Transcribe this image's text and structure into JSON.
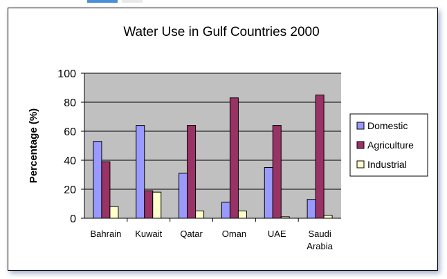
{
  "colors": {
    "plot_bg": "#c0c0c0",
    "domestic": "#9999ff",
    "agriculture": "#993366",
    "industrial": "#ffffcc",
    "gridline": "#000000"
  },
  "chart_data": {
    "type": "bar",
    "title": "Water Use in Gulf Countries 2000",
    "xlabel": "",
    "ylabel": "Percentage (%)",
    "ylim": [
      0,
      100
    ],
    "yticks": [
      0,
      20,
      40,
      60,
      80,
      100
    ],
    "grid": true,
    "legend_position": "right",
    "categories": [
      [
        "Bahrain"
      ],
      [
        "Kuwait"
      ],
      [
        "Qatar"
      ],
      [
        "Oman"
      ],
      [
        "UAE"
      ],
      [
        "Saudi",
        "Arabia"
      ]
    ],
    "series": [
      {
        "name": "Domestic",
        "color": "#9999ff",
        "values": [
          53,
          64,
          31,
          11,
          35,
          13
        ]
      },
      {
        "name": "Agriculture",
        "color": "#993366",
        "values": [
          39,
          19,
          64,
          83,
          64,
          85
        ]
      },
      {
        "name": "Industrial",
        "color": "#ffffcc",
        "values": [
          8,
          18,
          5,
          5,
          1,
          2
        ]
      }
    ]
  }
}
